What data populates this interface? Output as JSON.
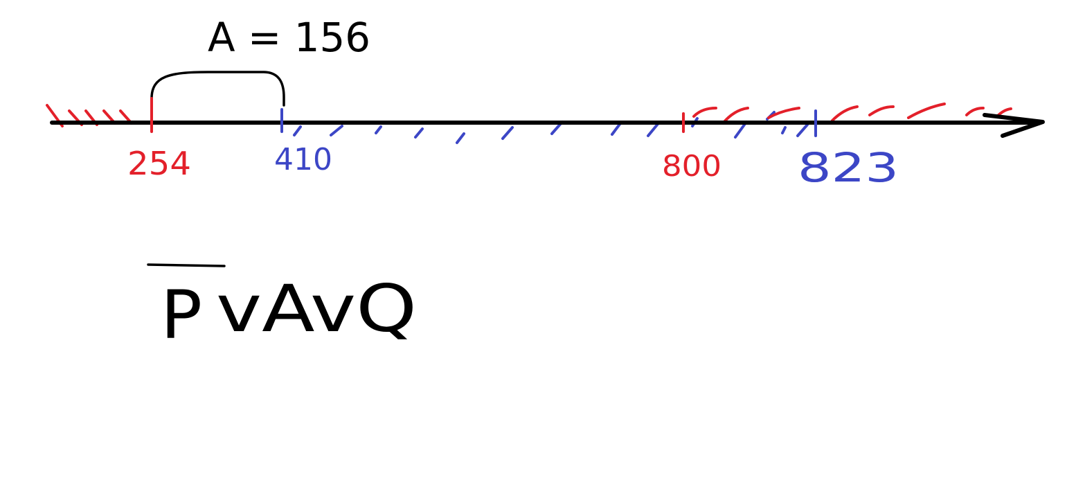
{
  "interval_width": {
    "text": "A = 156"
  },
  "number_line": {
    "points": [
      {
        "label": "254",
        "color": "#e3202a"
      },
      {
        "label": "410",
        "color": "#3c46c6"
      },
      {
        "label": "800",
        "color": "#e3202a"
      },
      {
        "label": "823",
        "color": "#3c46c6"
      }
    ]
  },
  "formula": {
    "negated": "P",
    "rest": "vAvQ"
  },
  "colors": {
    "ink": "#000000",
    "red": "#e3202a",
    "blue": "#3c46c6"
  }
}
